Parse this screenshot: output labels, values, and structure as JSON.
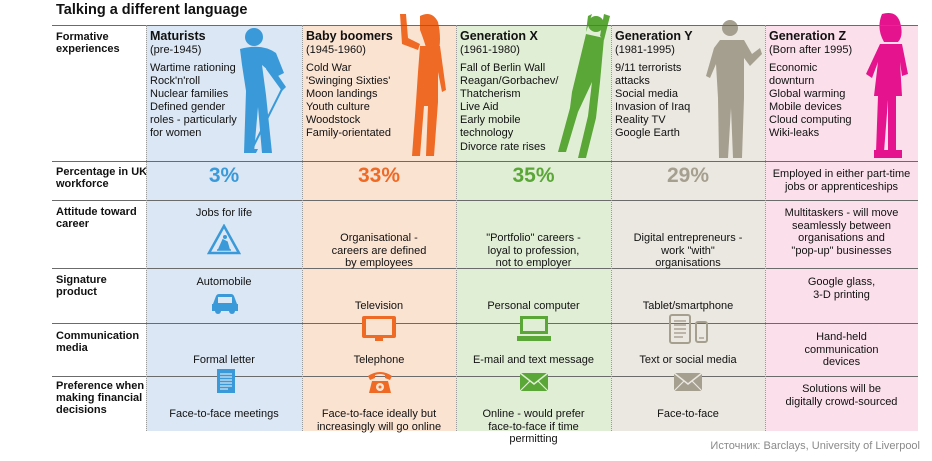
{
  "title": "Talking a different language",
  "source": "Источник: Barclays, University of Liverpool",
  "row_labels": {
    "formative": "Formative experiences",
    "percentage": "Percentage in UK workforce",
    "attitude": "Attitude toward career",
    "product": "Signature product",
    "communication": "Communication media",
    "financial": "Preference when making financial decisions"
  },
  "generations": [
    {
      "name": "Maturists",
      "years": "(pre-1945)",
      "formative": [
        "Wartime rationing",
        "Rock'n'roll",
        "Nuclear families",
        "Defined gender",
        "roles - particularly",
        "for women"
      ],
      "percentage": "3%",
      "attitude": [
        "Jobs for life"
      ],
      "product": "Automobile",
      "communication": [
        "Formal letter"
      ],
      "financial": [
        "Face-to-face meetings"
      ],
      "bg": "#dbe7f4",
      "accent": "#3a9ad9",
      "attitude_icon": "worker-warning-sign-icon",
      "product_icon": "car-icon",
      "comm_icon": "letter-icon"
    },
    {
      "name": "Baby boomers",
      "years": "(1945-1960)",
      "formative": [
        "Cold War",
        "'Swinging Sixties'",
        "Moon landings",
        "Youth culture",
        "Woodstock",
        "Family-orientated"
      ],
      "percentage": "33%",
      "attitude": [
        "Organisational -",
        "careers are defined",
        "by employees"
      ],
      "product": "Television",
      "communication": [
        "Telephone"
      ],
      "financial": [
        "Face-to-face ideally but",
        "increasingly will go online"
      ],
      "bg": "#fbe3d2",
      "accent": "#ef6a25",
      "attitude_icon": "",
      "product_icon": "television-icon",
      "comm_icon": "telephone-icon"
    },
    {
      "name": "Generation X",
      "years": "(1961-1980)",
      "formative": [
        "Fall of Berlin Wall",
        "Reagan/Gorbachev/",
        "Thatcherism",
        "Live Aid",
        "Early mobile",
        "technology",
        "Divorce rate rises"
      ],
      "percentage": "35%",
      "attitude": [
        "\"Portfolio\" careers -",
        "loyal to profession,",
        "not to employer"
      ],
      "product": "Personal computer",
      "communication": [
        "E-mail and text message"
      ],
      "financial": [
        "Online - would prefer",
        "face-to-face if time",
        "permitting"
      ],
      "bg": "#e1eed6",
      "accent": "#5aa637",
      "attitude_icon": "",
      "product_icon": "computer-icon",
      "comm_icon": "email-icon"
    },
    {
      "name": "Generation Y",
      "years": "(1981-1995)",
      "formative": [
        "9/11 terrorists",
        "attacks",
        "Social media",
        "Invasion of Iraq",
        "Reality TV",
        "Google Earth"
      ],
      "percentage": "29%",
      "attitude": [
        "Digital entrepreneurs -",
        "work \"with\"",
        "organisations"
      ],
      "product": "Tablet/smartphone",
      "communication": [
        "Text or social media"
      ],
      "financial": [
        "Face-to-face"
      ],
      "bg": "#ebe8e1",
      "accent": "#a59f8f",
      "attitude_icon": "",
      "product_icon": "tablet-smartphone-icon",
      "comm_icon": "message-envelope-icon"
    },
    {
      "name": "Generation Z",
      "years": "(Born after 1995)",
      "formative": [
        "Economic",
        "downturn",
        "Global warming",
        "Mobile devices",
        "Cloud computing",
        "Wiki-leaks"
      ],
      "percentage_text": [
        "Employed in either part-time",
        "jobs or apprenticeships"
      ],
      "attitude": [
        "Multitaskers - will move",
        "seamlessly between",
        "organisations and",
        "\"pop-up\" businesses"
      ],
      "product": [
        "Google glass,",
        "3-D printing"
      ],
      "communication": [
        "Hand-held",
        "communication",
        "devices"
      ],
      "financial": [
        "Solutions will be",
        "digitally crowd-sourced"
      ],
      "bg": "#fbe0ec",
      "accent": "#e6138e",
      "attitude_icon": "",
      "product_icon": "",
      "comm_icon": ""
    }
  ]
}
